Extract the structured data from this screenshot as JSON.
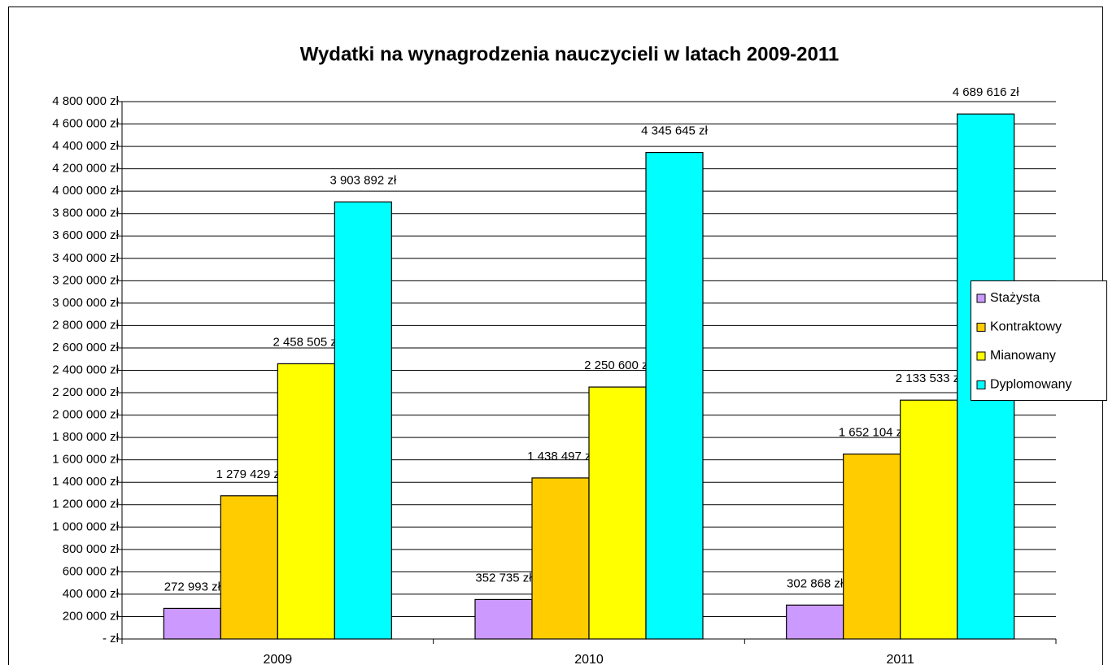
{
  "chart_data": {
    "type": "bar",
    "title": "Wydatki na wynagrodzenia nauczycieli w latach 2009-2011",
    "categories": [
      "2009",
      "2010",
      "2011"
    ],
    "series": [
      {
        "name": "Stażysta",
        "color": "#cc99ff",
        "values": [
          272993,
          352735,
          302868
        ],
        "value_labels": [
          "272 993 zł",
          "352 735 zł",
          "302 868 zł"
        ]
      },
      {
        "name": "Kontraktowy",
        "color": "#ffcc00",
        "values": [
          1279429,
          1438497,
          1652104
        ],
        "value_labels": [
          "1 279 429 zł",
          "1 438 497 zł",
          "1 652 104 zł"
        ]
      },
      {
        "name": "Mianowany",
        "color": "#ffff00",
        "values": [
          2458505,
          2250600,
          2133533
        ],
        "value_labels": [
          "2 458 505 zł",
          "2 250 600 zł",
          "2 133 533 zł"
        ]
      },
      {
        "name": "Dyplomowany",
        "color": "#00ffff",
        "values": [
          3903892,
          4345645,
          4689616
        ],
        "value_labels": [
          "3 903 892 zł",
          "4 345 645 zł",
          "4 689 616 zł"
        ]
      }
    ],
    "ylim": [
      0,
      4800000
    ],
    "yticks": [
      {
        "value": 0,
        "label": "-   zł"
      },
      {
        "value": 200000,
        "label": "200 000 zł"
      },
      {
        "value": 400000,
        "label": "400 000 zł"
      },
      {
        "value": 600000,
        "label": "600 000 zł"
      },
      {
        "value": 800000,
        "label": "800 000 zł"
      },
      {
        "value": 1000000,
        "label": "1 000 000 zł"
      },
      {
        "value": 1200000,
        "label": "1 200 000 zł"
      },
      {
        "value": 1400000,
        "label": "1 400 000 zł"
      },
      {
        "value": 1600000,
        "label": "1 600 000 zł"
      },
      {
        "value": 1800000,
        "label": "1 800 000 zł"
      },
      {
        "value": 2000000,
        "label": "2 000 000 zł"
      },
      {
        "value": 2200000,
        "label": "2 200 000 zł"
      },
      {
        "value": 2400000,
        "label": "2 400 000 zł"
      },
      {
        "value": 2600000,
        "label": "2 600 000 zł"
      },
      {
        "value": 2800000,
        "label": "2 800 000 zł"
      },
      {
        "value": 3000000,
        "label": "3 000 000 zł"
      },
      {
        "value": 3200000,
        "label": "3 200 000 zł"
      },
      {
        "value": 3400000,
        "label": "3 400 000 zł"
      },
      {
        "value": 3600000,
        "label": "3 600 000 zł"
      },
      {
        "value": 3800000,
        "label": "3 800 000 zł"
      },
      {
        "value": 4000000,
        "label": "4 000 000 zł"
      },
      {
        "value": 4200000,
        "label": "4 200 000 zł"
      },
      {
        "value": 4400000,
        "label": "4 400 000 zł"
      },
      {
        "value": 4600000,
        "label": "4 600 000 zł"
      },
      {
        "value": 4800000,
        "label": "4 800 000 zł"
      }
    ],
    "grid": true,
    "legend": "right"
  }
}
